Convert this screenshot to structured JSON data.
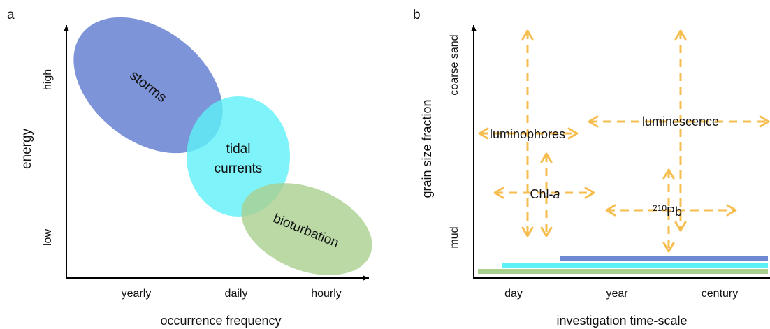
{
  "panel_a": {
    "letter": "a",
    "x_label": "occurrence frequency",
    "y_label": "energy",
    "x_ticks": {
      "yearly": "yearly",
      "daily": "daily",
      "hourly": "hourly"
    },
    "y_ticks": {
      "high": "high",
      "low": "low"
    },
    "regions": {
      "storms": {
        "label": "storms",
        "color": "#6f88d4"
      },
      "tidal": {
        "line1": "tidal",
        "line2": "currents",
        "color": "#5ef0f7"
      },
      "bioturbation": {
        "label": "bioturbation",
        "color": "#a9cf8f"
      }
    }
  },
  "panel_b": {
    "letter": "b",
    "x_label": "investigation time-scale",
    "y_label": "grain size fraction",
    "x_ticks": {
      "day": "day",
      "year": "year",
      "century": "century"
    },
    "y_ticks": {
      "coarse": "coarse sand",
      "mud": "mud"
    },
    "arrow_color": "#f6bd4f",
    "methods": {
      "luminophores": "luminophores",
      "luminescence": "luminescence",
      "chl_base": "Chl-",
      "chl_italic": "a",
      "pb_super": "210",
      "pb_base": "Pb"
    },
    "bars": {
      "storms_color": "#6f88d4",
      "tidal_color": "#5ef0f7",
      "bioturbation_color": "#a9cf8f"
    }
  }
}
